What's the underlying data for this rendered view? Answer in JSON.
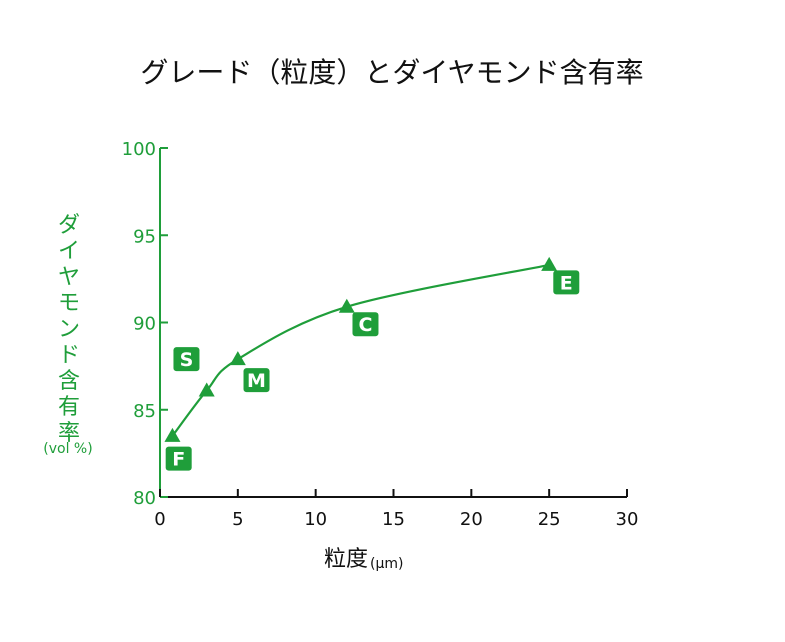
{
  "chart_data": {
    "type": "line",
    "title": "グレード（粒度）とダイヤモンド含有率",
    "xlabel": "粒度",
    "xlabel_unit": "(µm)",
    "ylabel": "ダイヤモンド含有率",
    "ylabel_unit": "(vol %)",
    "xlim": [
      0,
      30
    ],
    "ylim": [
      80,
      100
    ],
    "xticks": [
      0,
      5,
      10,
      15,
      20,
      25,
      30
    ],
    "yticks": [
      80,
      85,
      90,
      95,
      100
    ],
    "grid": false,
    "series": [
      {
        "points": [
          {
            "x": 0.8,
            "y": 83.5
          },
          {
            "x": 3,
            "y": 86.1
          },
          {
            "x": 5,
            "y": 87.9
          },
          {
            "x": 12,
            "y": 90.9
          },
          {
            "x": 25,
            "y": 93.3
          }
        ]
      }
    ],
    "grade_labels": [
      {
        "label": "F",
        "x": 1.2,
        "y": 82.2
      },
      {
        "label": "S",
        "x": 1.7,
        "y": 87.9
      },
      {
        "label": "M",
        "x": 6.2,
        "y": 86.7
      },
      {
        "label": "C",
        "x": 13.2,
        "y": 89.9
      },
      {
        "label": "E",
        "x": 26.1,
        "y": 92.3
      }
    ],
    "colors": {
      "accent": "#1f9e3a",
      "badge": "#1f9e3a",
      "title": "#111111",
      "xlabel": "#111111"
    }
  }
}
